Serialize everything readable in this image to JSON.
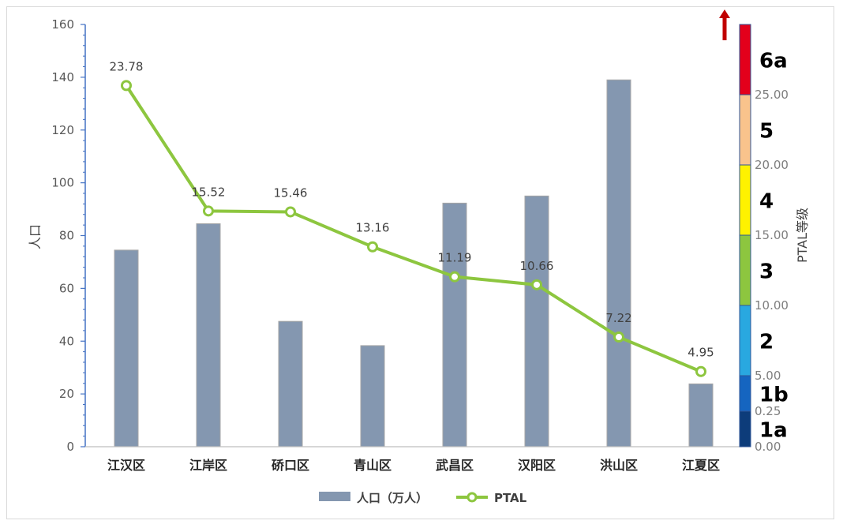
{
  "chart_data": {
    "type": "bar+line",
    "categories": [
      "江汉区",
      "江岸区",
      "硚口区",
      "青山区",
      "武昌区",
      "汉阳区",
      "洪山区",
      "江夏区"
    ],
    "series": [
      {
        "name": "人口（万人）",
        "type": "bar",
        "axis": "left",
        "values": [
          74.5,
          84.5,
          47.5,
          38.3,
          92.3,
          95.0,
          139.0,
          23.8
        ],
        "color": "#8497b0"
      },
      {
        "name": "PTAL",
        "type": "line",
        "axis": "right",
        "values": [
          23.78,
          15.52,
          15.46,
          13.16,
          11.19,
          10.66,
          7.22,
          4.95
        ],
        "color": "#8dc63f"
      }
    ],
    "ylabel": "人口",
    "ylim": [
      0,
      160
    ],
    "yticks": [
      0,
      20,
      40,
      60,
      80,
      100,
      120,
      140,
      160
    ],
    "y2label": "PTAL等级",
    "y2ticks": [
      "0.00",
      "0.25",
      "5.00",
      "10.00",
      "15.00",
      "20.00",
      "25.00"
    ],
    "ptal_levels": [
      {
        "label": "1a",
        "color": "#0d3c7a"
      },
      {
        "label": "1b",
        "color": "#1565c0"
      },
      {
        "label": "2",
        "color": "#29a8e0"
      },
      {
        "label": "3",
        "color": "#8dc63f"
      },
      {
        "label": "4",
        "color": "#fff200"
      },
      {
        "label": "5",
        "color": "#f9c38c"
      },
      {
        "label": "6a",
        "color": "#e3001b"
      }
    ],
    "grid": false,
    "legend": "bottom"
  }
}
